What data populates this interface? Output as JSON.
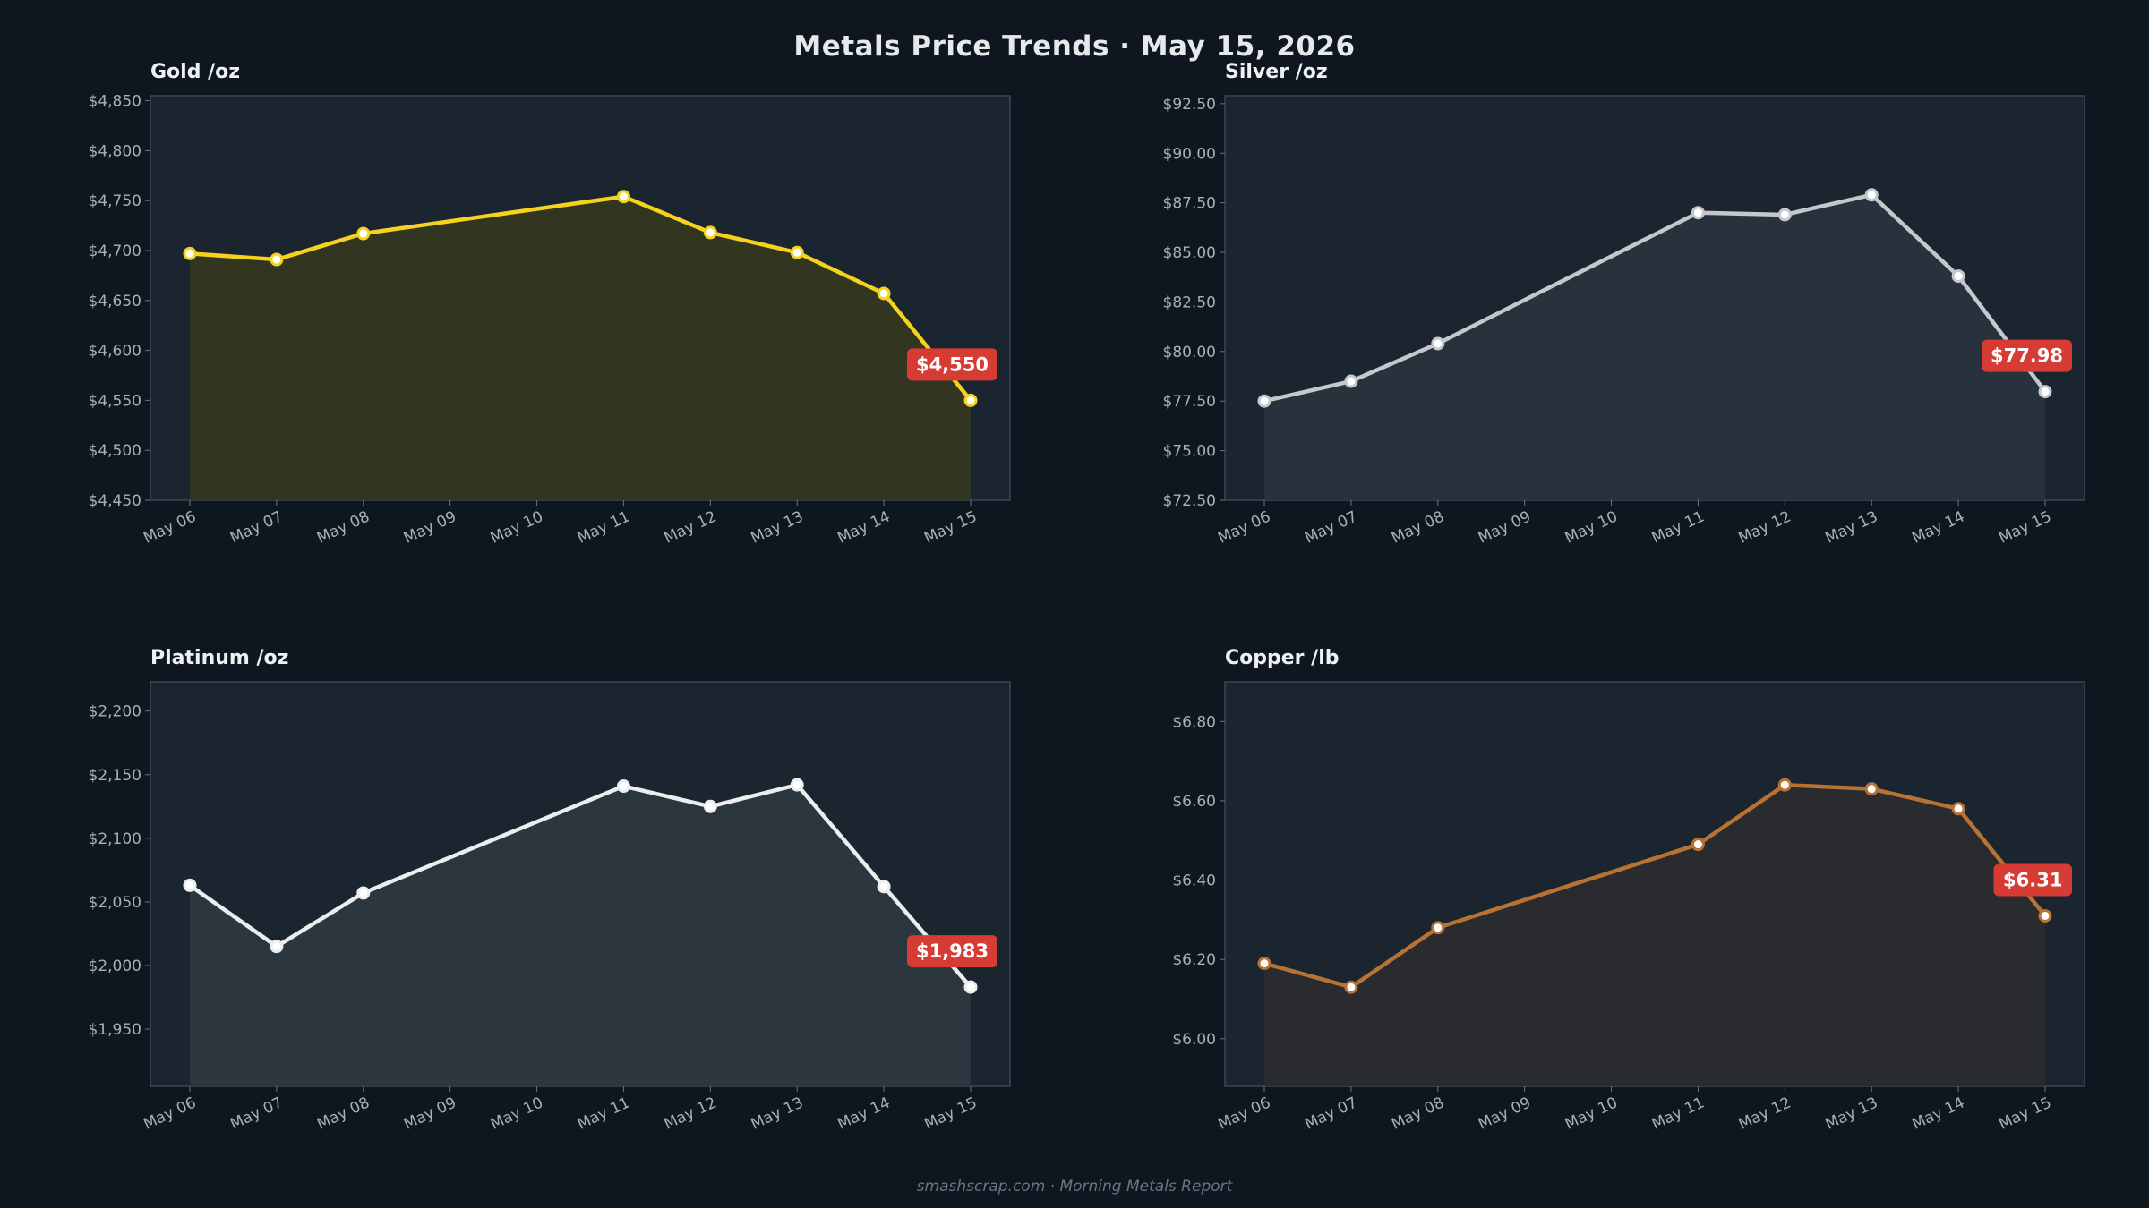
{
  "title": "Metals Price Trends  ·  May 15, 2026",
  "footer": "smashscrap.com  ·  Morning Metals Report",
  "chart_data": [
    {
      "type": "line",
      "title": "Gold  /oz",
      "x": [
        "May 06",
        "May 07",
        "May 08",
        "May 09",
        "May 10",
        "May 11",
        "May 12",
        "May 13",
        "May 14",
        "May 15"
      ],
      "points": [
        [
          "May 06",
          4697
        ],
        [
          "May 07",
          4691
        ],
        [
          "May 08",
          4717
        ],
        [
          "May 11",
          4754
        ],
        [
          "May 12",
          4718
        ],
        [
          "May 13",
          4698
        ],
        [
          "May 14",
          4657
        ],
        [
          "May 15",
          4550
        ]
      ],
      "latest_label": "$4,550",
      "ylim": [
        4450,
        4855
      ],
      "yticks": [
        4450,
        4500,
        4550,
        4600,
        4650,
        4700,
        4750,
        4800,
        4850
      ],
      "ytick_labels": [
        "$4,450",
        "$4,500",
        "$4,550",
        "$4,600",
        "$4,650",
        "$4,700",
        "$4,750",
        "$4,800",
        "$4,850"
      ],
      "color": "#f5d21e",
      "fill": "#34361f",
      "grid": false
    },
    {
      "type": "line",
      "title": "Silver  /oz",
      "x": [
        "May 06",
        "May 07",
        "May 08",
        "May 09",
        "May 10",
        "May 11",
        "May 12",
        "May 13",
        "May 14",
        "May 15"
      ],
      "points": [
        [
          "May 06",
          77.5
        ],
        [
          "May 07",
          78.5
        ],
        [
          "May 08",
          80.4
        ],
        [
          "May 11",
          87.0
        ],
        [
          "May 12",
          86.9
        ],
        [
          "May 13",
          87.9
        ],
        [
          "May 14",
          83.8
        ],
        [
          "May 15",
          77.98
        ]
      ],
      "latest_label": "$77.98",
      "ylim": [
        72.5,
        92.9
      ],
      "yticks": [
        72.5,
        75,
        77.5,
        80,
        82.5,
        85,
        87.5,
        90,
        92.5
      ],
      "ytick_labels": [
        "$72.50",
        "$75.00",
        "$77.50",
        "$80.00",
        "$82.50",
        "$85.00",
        "$87.50",
        "$90.00",
        "$92.50"
      ],
      "color": "#c4c8cc",
      "fill": "#28333d",
      "grid": false
    },
    {
      "type": "line",
      "title": "Platinum  /oz",
      "x": [
        "May 06",
        "May 07",
        "May 08",
        "May 09",
        "May 10",
        "May 11",
        "May 12",
        "May 13",
        "May 14",
        "May 15"
      ],
      "points": [
        [
          "May 06",
          2063
        ],
        [
          "May 07",
          2015
        ],
        [
          "May 08",
          2057
        ],
        [
          "May 11",
          2141
        ],
        [
          "May 12",
          2125
        ],
        [
          "May 13",
          2142
        ],
        [
          "May 14",
          2062
        ],
        [
          "May 15",
          1983
        ]
      ],
      "latest_label": "$1,983",
      "ylim": [
        1905,
        2223
      ],
      "yticks": [
        1950,
        2000,
        2050,
        2100,
        2150,
        2200
      ],
      "ytick_labels": [
        "$1,950",
        "$2,000",
        "$2,050",
        "$2,100",
        "$2,150",
        "$2,200"
      ],
      "color": "#ebedee",
      "fill": "#2c3740",
      "grid": false
    },
    {
      "type": "line",
      "title": "Copper  /lb",
      "x": [
        "May 06",
        "May 07",
        "May 08",
        "May 09",
        "May 10",
        "May 11",
        "May 12",
        "May 13",
        "May 14",
        "May 15"
      ],
      "points": [
        [
          "May 06",
          6.19
        ],
        [
          "May 07",
          6.13
        ],
        [
          "May 08",
          6.28
        ],
        [
          "May 11",
          6.49
        ],
        [
          "May 12",
          6.64
        ],
        [
          "May 13",
          6.63
        ],
        [
          "May 14",
          6.58
        ],
        [
          "May 15",
          6.31
        ]
      ],
      "latest_label": "$6.31",
      "ylim": [
        5.88,
        6.9
      ],
      "yticks": [
        6.0,
        6.2,
        6.4,
        6.6,
        6.8
      ],
      "ytick_labels": [
        "$6.00",
        "$6.20",
        "$6.40",
        "$6.60",
        "$6.80"
      ],
      "color": "#b87333",
      "fill": "#2a2b2e",
      "grid": false
    }
  ]
}
